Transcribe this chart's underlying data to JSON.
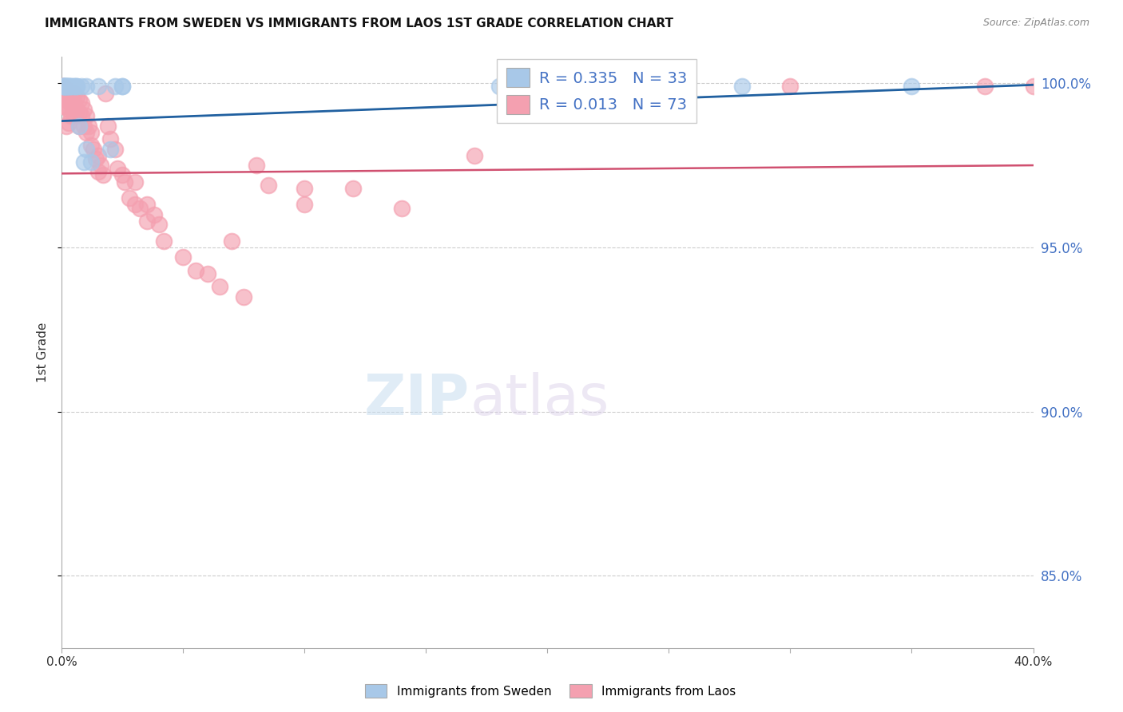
{
  "title": "IMMIGRANTS FROM SWEDEN VS IMMIGRANTS FROM LAOS 1ST GRADE CORRELATION CHART",
  "source": "Source: ZipAtlas.com",
  "ylabel": "1st Grade",
  "legend_sweden": "Immigrants from Sweden",
  "legend_laos": "Immigrants from Laos",
  "R_sweden": 0.335,
  "N_sweden": 33,
  "R_laos": 0.013,
  "N_laos": 73,
  "color_sweden": "#a8c8e8",
  "color_laos": "#f4a0b0",
  "trendline_sweden": "#2060a0",
  "trendline_laos": "#d05070",
  "watermark_zip": "ZIP",
  "watermark_atlas": "atlas",
  "ylim_min": 0.828,
  "ylim_max": 1.008,
  "xlim_min": 0.0,
  "xlim_max": 0.4,
  "yticks": [
    0.85,
    0.9,
    0.95,
    1.0
  ],
  "ytick_labels": [
    "85.0%",
    "90.0%",
    "95.0%",
    "100.0%"
  ],
  "xticks": [
    0.0,
    0.05,
    0.1,
    0.15,
    0.2,
    0.25,
    0.3,
    0.35,
    0.4
  ],
  "xtick_labels_show": [
    "0.0%",
    "",
    "",
    "",
    "",
    "",
    "",
    "",
    "40.0%"
  ],
  "sweden_x": [
    0.0005,
    0.0008,
    0.001,
    0.001,
    0.001,
    0.0015,
    0.002,
    0.002,
    0.002,
    0.002,
    0.003,
    0.003,
    0.003,
    0.004,
    0.004,
    0.005,
    0.005,
    0.006,
    0.006,
    0.007,
    0.008,
    0.009,
    0.01,
    0.01,
    0.012,
    0.015,
    0.02,
    0.022,
    0.025,
    0.025,
    0.18,
    0.28,
    0.35
  ],
  "sweden_y": [
    0.999,
    0.999,
    0.999,
    0.999,
    0.999,
    0.999,
    0.999,
    0.999,
    0.999,
    0.999,
    0.999,
    0.999,
    0.999,
    0.999,
    0.999,
    0.999,
    0.999,
    0.999,
    0.999,
    0.987,
    0.999,
    0.976,
    0.98,
    0.999,
    0.976,
    0.999,
    0.98,
    0.999,
    0.999,
    0.999,
    0.999,
    0.999,
    0.999
  ],
  "laos_x": [
    0.0003,
    0.0005,
    0.001,
    0.001,
    0.001,
    0.0015,
    0.002,
    0.002,
    0.002,
    0.003,
    0.003,
    0.003,
    0.003,
    0.004,
    0.004,
    0.004,
    0.005,
    0.005,
    0.005,
    0.006,
    0.006,
    0.007,
    0.007,
    0.007,
    0.008,
    0.008,
    0.009,
    0.009,
    0.01,
    0.01,
    0.011,
    0.012,
    0.012,
    0.013,
    0.014,
    0.015,
    0.015,
    0.016,
    0.017,
    0.018,
    0.019,
    0.02,
    0.022,
    0.023,
    0.025,
    0.026,
    0.028,
    0.03,
    0.03,
    0.032,
    0.035,
    0.035,
    0.038,
    0.04,
    0.042,
    0.05,
    0.055,
    0.06,
    0.065,
    0.07,
    0.075,
    0.08,
    0.085,
    0.1,
    0.1,
    0.12,
    0.14,
    0.17,
    0.2,
    0.25,
    0.3,
    0.38,
    0.4
  ],
  "laos_y": [
    0.999,
    0.999,
    0.998,
    0.995,
    0.993,
    0.997,
    0.998,
    0.993,
    0.987,
    0.997,
    0.995,
    0.992,
    0.988,
    0.997,
    0.994,
    0.99,
    0.997,
    0.994,
    0.99,
    0.996,
    0.992,
    0.995,
    0.991,
    0.987,
    0.994,
    0.99,
    0.992,
    0.987,
    0.99,
    0.985,
    0.987,
    0.985,
    0.981,
    0.98,
    0.977,
    0.978,
    0.973,
    0.975,
    0.972,
    0.997,
    0.987,
    0.983,
    0.98,
    0.974,
    0.972,
    0.97,
    0.965,
    0.97,
    0.963,
    0.962,
    0.963,
    0.958,
    0.96,
    0.957,
    0.952,
    0.947,
    0.943,
    0.942,
    0.938,
    0.952,
    0.935,
    0.975,
    0.969,
    0.968,
    0.963,
    0.968,
    0.962,
    0.978,
    0.999,
    0.999,
    0.999,
    0.999,
    0.999
  ],
  "trendline_sweden_y0": 0.9885,
  "trendline_sweden_y1": 0.9995,
  "trendline_laos_y0": 0.9725,
  "trendline_laos_y1": 0.975
}
